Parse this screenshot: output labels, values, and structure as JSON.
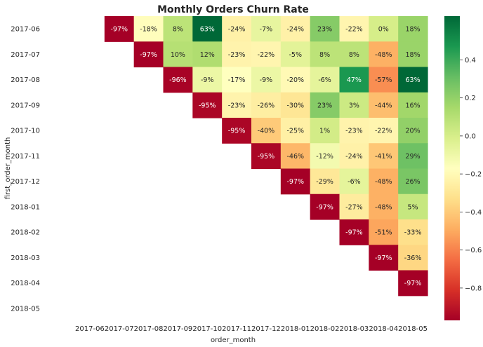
{
  "chart_data": {
    "type": "heatmap",
    "title": "Monthly Orders Churn Rate",
    "xlabel": "order_month",
    "ylabel": "first_order_month",
    "x_categories": [
      "2017-06",
      "2017-07",
      "2017-08",
      "2017-09",
      "2017-10",
      "2017-11",
      "2017-12",
      "2018-01",
      "2018-02",
      "2018-03",
      "2018-04",
      "2018-05"
    ],
    "y_categories": [
      "2017-06",
      "2017-07",
      "2017-08",
      "2017-09",
      "2017-10",
      "2017-11",
      "2017-12",
      "2018-01",
      "2018-02",
      "2018-03",
      "2018-04",
      "2018-05"
    ],
    "values": [
      [
        null,
        -0.97,
        -0.18,
        0.08,
        0.63,
        -0.24,
        -0.07,
        -0.24,
        0.23,
        -0.22,
        0.0,
        0.18
      ],
      [
        null,
        null,
        -0.97,
        0.1,
        0.12,
        -0.23,
        -0.22,
        -0.05,
        0.08,
        0.08,
        -0.48,
        0.18
      ],
      [
        null,
        null,
        null,
        -0.96,
        -0.09,
        -0.17,
        -0.09,
        -0.2,
        -0.06,
        0.47,
        -0.57,
        0.63
      ],
      [
        null,
        null,
        null,
        null,
        -0.95,
        -0.23,
        -0.26,
        -0.3,
        0.23,
        0.03,
        -0.44,
        0.16
      ],
      [
        null,
        null,
        null,
        null,
        null,
        -0.95,
        -0.4,
        -0.25,
        0.01,
        -0.23,
        -0.22,
        0.2
      ],
      [
        null,
        null,
        null,
        null,
        null,
        null,
        -0.95,
        -0.46,
        -0.12,
        -0.24,
        -0.41,
        0.29
      ],
      [
        null,
        null,
        null,
        null,
        null,
        null,
        null,
        -0.97,
        -0.29,
        -0.06,
        -0.48,
        0.26
      ],
      [
        null,
        null,
        null,
        null,
        null,
        null,
        null,
        null,
        -0.97,
        -0.27,
        -0.48,
        0.05
      ],
      [
        null,
        null,
        null,
        null,
        null,
        null,
        null,
        null,
        null,
        -0.97,
        -0.51,
        -0.33
      ],
      [
        null,
        null,
        null,
        null,
        null,
        null,
        null,
        null,
        null,
        null,
        -0.97,
        -0.36
      ],
      [
        null,
        null,
        null,
        null,
        null,
        null,
        null,
        null,
        null,
        null,
        null,
        -0.97
      ],
      [
        null,
        null,
        null,
        null,
        null,
        null,
        null,
        null,
        null,
        null,
        null,
        null
      ]
    ],
    "annotations": [
      [
        null,
        "-97%",
        "-18%",
        "8%",
        "63%",
        "-24%",
        "-7%",
        "-24%",
        "23%",
        "-22%",
        "0%",
        "18%"
      ],
      [
        null,
        null,
        "-97%",
        "10%",
        "12%",
        "-23%",
        "-22%",
        "-5%",
        "8%",
        "8%",
        "-48%",
        "18%"
      ],
      [
        null,
        null,
        null,
        "-96%",
        "-9%",
        "-17%",
        "-9%",
        "-20%",
        "-6%",
        "47%",
        "-57%",
        "63%"
      ],
      [
        null,
        null,
        null,
        null,
        "-95%",
        "-23%",
        "-26%",
        "-30%",
        "23%",
        "3%",
        "-44%",
        "16%"
      ],
      [
        null,
        null,
        null,
        null,
        null,
        "-95%",
        "-40%",
        "-25%",
        "1%",
        "-23%",
        "-22%",
        "20%"
      ],
      [
        null,
        null,
        null,
        null,
        null,
        null,
        "-95%",
        "-46%",
        "-12%",
        "-24%",
        "-41%",
        "29%"
      ],
      [
        null,
        null,
        null,
        null,
        null,
        null,
        null,
        "-97%",
        "-29%",
        "-6%",
        "-48%",
        "26%"
      ],
      [
        null,
        null,
        null,
        null,
        null,
        null,
        null,
        null,
        "-97%",
        "-27%",
        "-48%",
        "5%"
      ],
      [
        null,
        null,
        null,
        null,
        null,
        null,
        null,
        null,
        null,
        "-97%",
        "-51%",
        "-33%"
      ],
      [
        null,
        null,
        null,
        null,
        null,
        null,
        null,
        null,
        null,
        null,
        "-97%",
        "-36%"
      ],
      [
        null,
        null,
        null,
        null,
        null,
        null,
        null,
        null,
        null,
        null,
        null,
        "-97%"
      ],
      [
        null,
        null,
        null,
        null,
        null,
        null,
        null,
        null,
        null,
        null,
        null,
        null
      ]
    ],
    "colormap": "RdYlGn",
    "vmin": -0.97,
    "vmax": 0.63,
    "colorbar_ticks": [
      -0.8,
      -0.6,
      -0.4,
      -0.2,
      0.0,
      0.2,
      0.4
    ],
    "colorbar_tick_labels": [
      "−0.8",
      "−0.6",
      "−0.4",
      "−0.2",
      "0.0",
      "0.2",
      "0.4"
    ]
  }
}
